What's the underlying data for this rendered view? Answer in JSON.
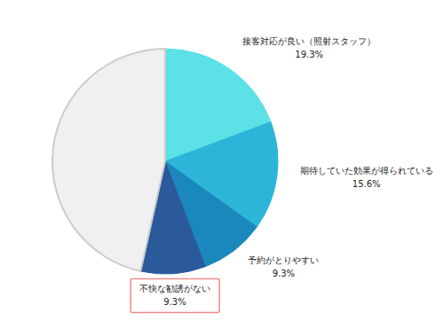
{
  "chart_data": {
    "type": "pie",
    "categories": [
      "接客対応が良い（照射スタッフ）",
      "期待していた効果が得られている",
      "予約がとりやすい",
      "不快な勧誘がない",
      null
    ],
    "values": [
      19.3,
      15.6,
      9.3,
      9.3,
      46.5
    ],
    "value_labels": [
      "19.3%",
      "15.6%",
      "9.3%",
      "9.3%",
      null
    ],
    "colors": [
      "#5ce1e6",
      "#2cb5d8",
      "#1a88bc",
      "#2a5a9c",
      "#f0f0f0"
    ],
    "data_labels": true
  }
}
